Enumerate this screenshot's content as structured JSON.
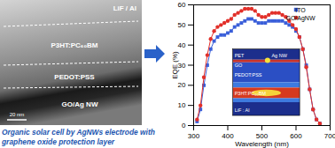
{
  "chart_data": {
    "type": "line",
    "xlabel": "Wavelength (nm)",
    "ylabel": "EQE (%)",
    "x": [
      310,
      320,
      330,
      340,
      350,
      360,
      370,
      380,
      390,
      400,
      410,
      420,
      430,
      440,
      450,
      460,
      470,
      480,
      490,
      500,
      510,
      520,
      530,
      540,
      550,
      560,
      570,
      580,
      590,
      600,
      610,
      620,
      630,
      640,
      650,
      660,
      670
    ],
    "series": [
      {
        "name": "ITO",
        "color": "#3a5fd9",
        "marker": "square",
        "values": [
          2,
          8,
          20,
          30,
          38,
          42,
          44,
          45,
          45,
          46,
          47,
          49,
          50,
          51,
          52,
          53,
          53,
          52,
          51,
          51,
          51,
          52,
          52,
          52,
          52,
          52,
          51,
          50,
          49,
          47,
          44,
          38,
          30,
          18,
          8,
          3,
          1
        ]
      },
      {
        "name": "GO/AgNW",
        "color": "#e2302a",
        "marker": "circle",
        "values": [
          3,
          10,
          24,
          35,
          43,
          47,
          49,
          50,
          51,
          52,
          53,
          55,
          56,
          57,
          58,
          58,
          58,
          57,
          55,
          54,
          54,
          55,
          56,
          56,
          56,
          55,
          54,
          52,
          50,
          48,
          44,
          38,
          29,
          18,
          8,
          3,
          1
        ]
      }
    ],
    "xlim": [
      300,
      700
    ],
    "xticks": [
      300,
      400,
      500,
      600,
      700
    ],
    "ylim": [
      0,
      60
    ],
    "yticks": [
      0,
      10,
      20,
      30,
      40,
      50,
      60
    ],
    "grid": false,
    "legend": "top-right",
    "annotations": [
      "PET",
      "GO",
      "Ag NW",
      "PEDOT:PSS",
      "P3HT:PC₆₀BM",
      "LiF : Al"
    ]
  },
  "tem_image": {
    "labels": [
      "LiF / Al",
      "P3HT:PC₆₀BM",
      "PEDOT:PSS",
      "GO/Ag NW"
    ],
    "scale_bar": "20 nm"
  },
  "caption": [
    "Organic solar cell by AgNWs electrode with",
    "graphene oxide protection layer"
  ]
}
